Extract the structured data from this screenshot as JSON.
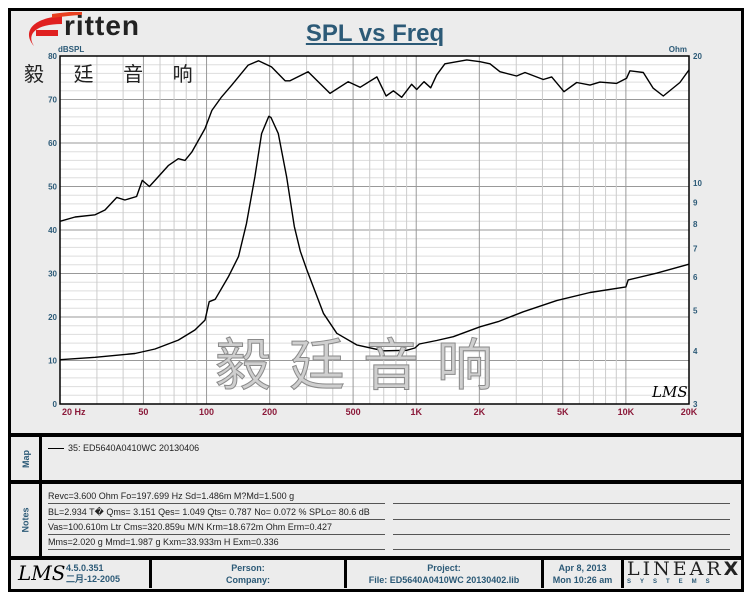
{
  "logo": {
    "word": "ritten",
    "letter": "E",
    "chinese": "毅 廷 音 响"
  },
  "watermark": "毅廷音响",
  "chart_data": {
    "type": "line",
    "title": "SPL vs Freq",
    "left_axis_label": "dBSPL",
    "right_axis_label": "Ohm",
    "x_scale": "log",
    "xlim": [
      20,
      20000
    ],
    "ylim_left": [
      0,
      80
    ],
    "ylim_right": [
      3,
      20
    ],
    "right_scale": "log",
    "grid": true,
    "x_ticks": [
      {
        "v": 20,
        "label": "20  Hz"
      },
      {
        "v": 50,
        "label": "50"
      },
      {
        "v": 100,
        "label": "100"
      },
      {
        "v": 200,
        "label": "200"
      },
      {
        "v": 500,
        "label": "500"
      },
      {
        "v": 1000,
        "label": "1K"
      },
      {
        "v": 2000,
        "label": "2K"
      },
      {
        "v": 5000,
        "label": "5K"
      },
      {
        "v": 10000,
        "label": "10K"
      },
      {
        "v": 20000,
        "label": "20K"
      }
    ],
    "left_ticks": [
      0,
      10,
      20,
      30,
      40,
      50,
      60,
      70,
      80
    ],
    "right_ticks": [
      3,
      4,
      5,
      6,
      7,
      8,
      9,
      10,
      20
    ],
    "series": [
      {
        "axis": "left",
        "points": [
          [
            20,
            42
          ],
          [
            23.6,
            43
          ],
          [
            29.4,
            43.5
          ],
          [
            32.8,
            44.6
          ],
          [
            37.3,
            47.5
          ],
          [
            40.8,
            46.9
          ],
          [
            46.4,
            47.7
          ],
          [
            49.4,
            51.4
          ],
          [
            53.4,
            50
          ],
          [
            56.8,
            51.4
          ],
          [
            65.7,
            54.8
          ],
          [
            73.3,
            56.4
          ],
          [
            78.9,
            56
          ],
          [
            85,
            57.9
          ],
          [
            98.3,
            63.3
          ],
          [
            106,
            67.5
          ],
          [
            118,
            70.6
          ],
          [
            132,
            73.3
          ],
          [
            158,
            77.9
          ],
          [
            177,
            78.9
          ],
          [
            204,
            77.5
          ],
          [
            237,
            74.3
          ],
          [
            250,
            74.3
          ],
          [
            305,
            76.4
          ],
          [
            388,
            71.4
          ],
          [
            474,
            74.1
          ],
          [
            540,
            72.8
          ],
          [
            649,
            75.2
          ],
          [
            718,
            70.8
          ],
          [
            778,
            72
          ],
          [
            853,
            70.5
          ],
          [
            951,
            73.5
          ],
          [
            1005,
            72.3
          ],
          [
            1089,
            74.1
          ],
          [
            1172,
            72.7
          ],
          [
            1251,
            75.6
          ],
          [
            1371,
            78.2
          ],
          [
            1742,
            79.1
          ],
          [
            2014,
            78.7
          ],
          [
            2248,
            78.2
          ],
          [
            2508,
            76.4
          ],
          [
            3013,
            75.4
          ],
          [
            3302,
            76.2
          ],
          [
            4036,
            74.6
          ],
          [
            4426,
            75.2
          ],
          [
            5067,
            71.8
          ],
          [
            5824,
            73.9
          ],
          [
            6744,
            73.3
          ],
          [
            7516,
            74
          ],
          [
            9033,
            73.7
          ],
          [
            10084,
            74.9
          ],
          [
            10456,
            76.6
          ],
          [
            12102,
            76.2
          ],
          [
            13500,
            72.6
          ],
          [
            15080,
            70.8
          ],
          [
            18100,
            73.9
          ],
          [
            20000,
            76.8
          ]
        ]
      },
      {
        "axis": "right",
        "points": [
          [
            20,
            3.82
          ],
          [
            29.4,
            3.87
          ],
          [
            45.6,
            3.95
          ],
          [
            56.8,
            4.05
          ],
          [
            73.3,
            4.25
          ],
          [
            88,
            4.49
          ],
          [
            98.3,
            4.74
          ],
          [
            103,
            5.24
          ],
          [
            110,
            5.31
          ],
          [
            127,
            6.0
          ],
          [
            142,
            6.7
          ],
          [
            155,
            8.03
          ],
          [
            170,
            10.36
          ],
          [
            183,
            13.1
          ],
          [
            198,
            14.4
          ],
          [
            203,
            14.3
          ],
          [
            220,
            13.1
          ],
          [
            241,
            10.36
          ],
          [
            262,
            7.9
          ],
          [
            280,
            6.9
          ],
          [
            301,
            6.23
          ],
          [
            361,
            4.92
          ],
          [
            418,
            4.41
          ],
          [
            520,
            4.14
          ],
          [
            697,
            4.01
          ],
          [
            900,
            4.02
          ],
          [
            986,
            4.07
          ],
          [
            1034,
            4.16
          ],
          [
            1251,
            4.24
          ],
          [
            1502,
            4.33
          ],
          [
            2014,
            4.57
          ],
          [
            2462,
            4.7
          ],
          [
            3238,
            4.96
          ],
          [
            4676,
            5.27
          ],
          [
            6744,
            5.51
          ],
          [
            10000,
            5.68
          ],
          [
            10260,
            5.9
          ],
          [
            14000,
            6.12
          ],
          [
            20000,
            6.43
          ]
        ]
      }
    ]
  },
  "map": {
    "label": "Map",
    "entry": "35: ED5640A0410WC   20130406"
  },
  "notes": {
    "label": "Notes",
    "lines": [
      "Revc=3.600 Ohm  Fo=197.699 Hz  Sd=1.486m M?Md=1.500 g",
      "BL=2.934 T�  Qms= 3.151  Qes= 1.049  Qts= 0.787  No= 0.072 %  SPLo= 80.6 dB",
      "Vas=100.610m Ltr  Cms=320.859u M/N  Krm=18.672m Ohm  Erm=0.427",
      "Mms=2.020 g  Mmd=1.987 g  Kxm=33.933m H  Exm=0.336"
    ]
  },
  "footer": {
    "lms_logo": "LMS",
    "version": "4.5.0.351",
    "build_date": "二月-12-2005",
    "person": "Person:",
    "company": "Company:",
    "project": "Project:",
    "file": "File: ED5640A0410WC  20130402.lib",
    "date": "Apr  8, 2013",
    "time": "Mon 10:26 am",
    "linearx_big": "LINEAR",
    "linearx_x": "X",
    "linearx_small": "SYSTEMS"
  },
  "plot_logo": "LMS",
  "colors": {
    "title": "#2c5a77",
    "x_tick": "#8b1a3a",
    "y_tick": "#2c5a77",
    "logo_red": "#e02020",
    "curve": "#000000"
  }
}
